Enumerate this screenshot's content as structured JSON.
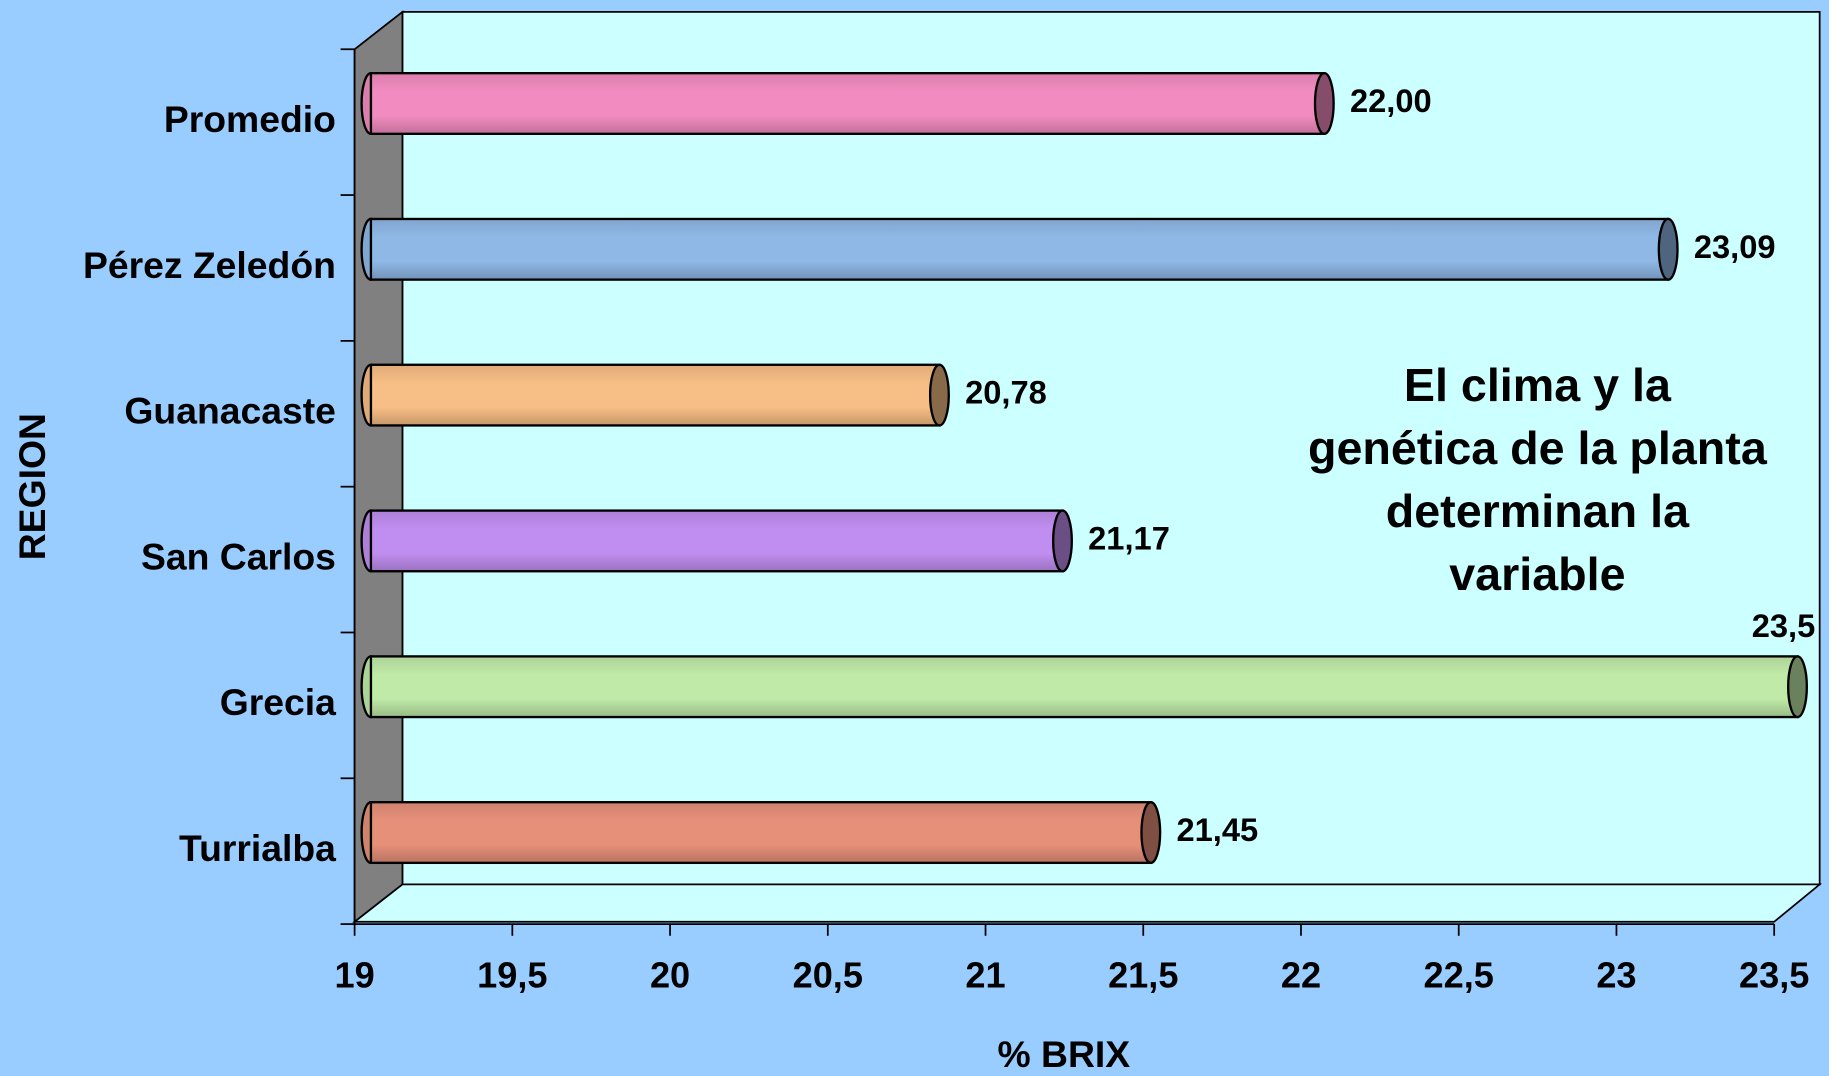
{
  "chart_data": {
    "type": "bar",
    "orientation": "horizontal",
    "x_label": "% BRIX",
    "y_label": "REGION",
    "annotation": [
      "El clima y la",
      "genética de la planta",
      "determinan la",
      "variable"
    ],
    "categories": [
      "Promedio",
      "Pérez Zeledón",
      "Guanacaste",
      "San Carlos",
      "Grecia",
      "Turrialba"
    ],
    "values": [
      22.0,
      23.09,
      20.78,
      21.17,
      23.5,
      21.45
    ],
    "value_labels": [
      "22,00",
      "23,09",
      "20,78",
      "21,17",
      "23,5",
      "21,45"
    ],
    "colors": [
      "#f28cc0",
      "#8fb8e6",
      "#f7be85",
      "#c08ef0",
      "#bfeaa8",
      "#e6907a"
    ],
    "xlim": [
      19,
      23.5
    ],
    "xticks": [
      19,
      {
        "value": 19.5,
        "label": "19,5"
      },
      20,
      {
        "value": 20.5,
        "label": "20,5"
      },
      21,
      {
        "value": 21.5,
        "label": "21,5"
      },
      22,
      {
        "value": 22.5,
        "label": "22,5"
      },
      23,
      {
        "value": 23.5,
        "label": "23,5"
      }
    ]
  }
}
